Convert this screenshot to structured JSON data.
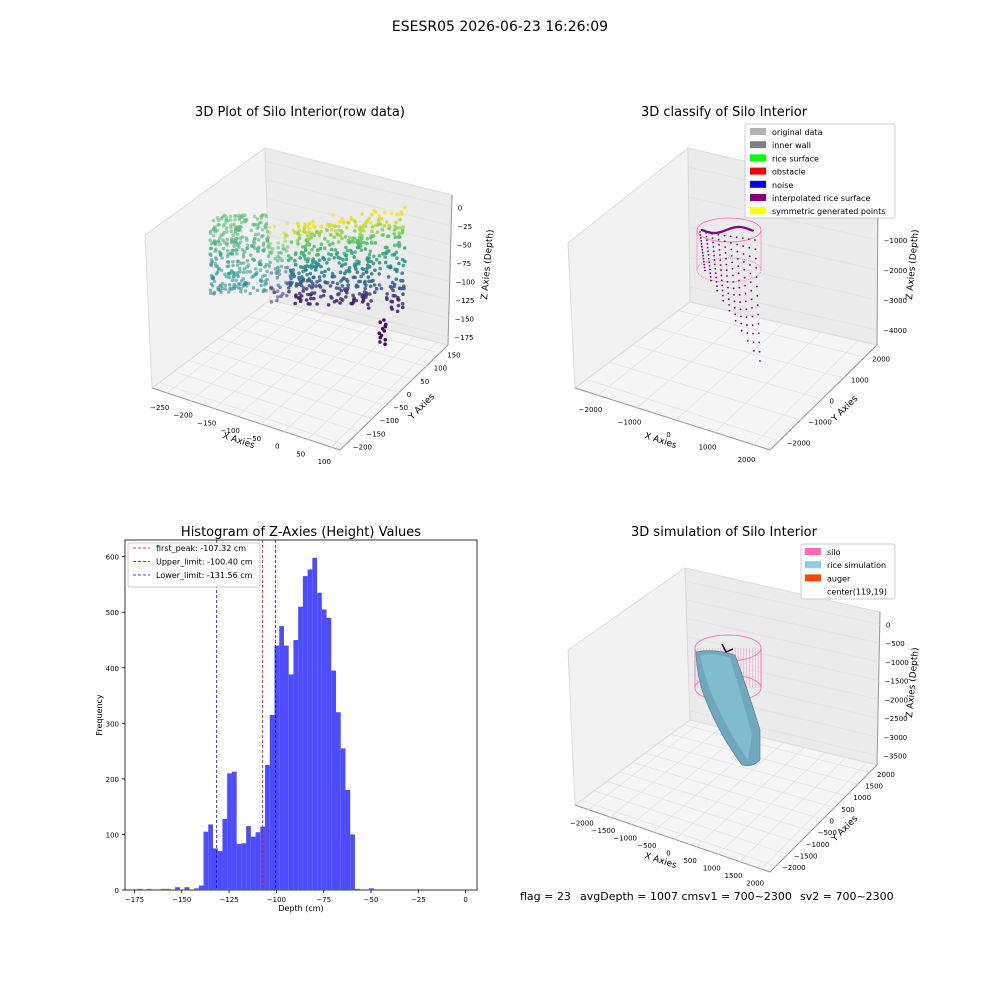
{
  "suptitle": "ESESR05 2026-06-23 16:26:09",
  "footer": {
    "flag": "flag = 23",
    "avg": "avgDepth = 1007 cmsv1 = 700~2300",
    "sv2": "sv2 = 700~2300"
  },
  "colors": {
    "histogram_bar": "#4d4dff",
    "first_peak_line": "#ff0000",
    "limit_lines": "#0000ff",
    "original_data": "#b3b3b3",
    "inner_wall": "#808080",
    "rice_surface": "#00ff00",
    "obstacle": "#ff0000",
    "noise": "#0000ff",
    "interpolated_rice_surface": "#800080",
    "symmetric_generated_points": "#ffff00",
    "silo": "#ff69b4",
    "rice_simulation": "#87ceeb",
    "auger": "#ff4500",
    "center": "#ffffff"
  },
  "chart_data": [
    {
      "type": "scatter",
      "title": "3D Plot of Silo Interior(row data)",
      "xlabel": "X Axies",
      "ylabel": "Y Axies",
      "zlabel": "Z Axies (Depth)",
      "x_ticks": [
        "−250",
        "−200",
        "−150",
        "−100",
        "−50",
        "0",
        "50",
        "100"
      ],
      "y_ticks": [
        "−200",
        "−150",
        "−100",
        "−50",
        "0",
        "50",
        "100",
        "150"
      ],
      "z_ticks": [
        "0",
        "−25",
        "−50",
        "−75",
        "−100",
        "−125",
        "−150",
        "−175"
      ],
      "colormap": "viridis"
    },
    {
      "type": "scatter",
      "title": "3D classify of Silo Interior",
      "xlabel": "X Axies",
      "ylabel": "Y Axies",
      "zlabel": "Z Axies (Depth)",
      "x_ticks": [
        "−2000",
        "−1000",
        "0",
        "1000",
        "2000"
      ],
      "y_ticks": [
        "−2000",
        "−1000",
        "0",
        "1000",
        "2000"
      ],
      "z_ticks": [
        "0",
        "−1000",
        "−2000",
        "−3000",
        "−4000"
      ],
      "legend": [
        "original data",
        "inner wall",
        "rice surface",
        "obstacle",
        "noise",
        "interpolated rice surface",
        "symmetric generated points"
      ],
      "legend_colors": [
        "#b3b3b3",
        "#808080",
        "#00ff00",
        "#ff0000",
        "#0000ff",
        "#800080",
        "#ffff00"
      ],
      "legend_position": "top-right"
    },
    {
      "type": "bar",
      "title": "Histogram of Z-Axies (Height) Values",
      "xlabel": "Depth (cm)",
      "ylabel": "Frequency",
      "xlim": [
        -180,
        6
      ],
      "ylim": [
        0,
        630
      ],
      "x_ticks": [
        -175,
        -150,
        -125,
        -100,
        -75,
        -50,
        -25,
        0
      ],
      "x_tick_labels": [
        "−175",
        "−150",
        "−125",
        "−100",
        "−75",
        "−50",
        "−25",
        "0"
      ],
      "y_ticks": [
        0,
        100,
        200,
        300,
        400,
        500,
        600
      ],
      "bin_start": -173.5,
      "bin_width": 2.5,
      "values": [
        2,
        0,
        2,
        0,
        0,
        2,
        2,
        0,
        5,
        0,
        5,
        0,
        3,
        8,
        105,
        118,
        75,
        70,
        128,
        210,
        213,
        83,
        84,
        115,
        96,
        104,
        114,
        225,
        315,
        440,
        475,
        440,
        388,
        450,
        510,
        565,
        577,
        598,
        535,
        505,
        490,
        395,
        320,
        255,
        180,
        100,
        2,
        0,
        0,
        3
      ],
      "vlines": [
        {
          "label": "first_peak: -107.32 cm",
          "x": -107.32,
          "style": "red-dashed"
        },
        {
          "label": "Upper_limit: -100.40 cm",
          "x": -100.4,
          "style": "blue-dashed"
        },
        {
          "label": "Lower_limit: -131.56 cm",
          "x": -131.56,
          "style": "blue-dashed"
        }
      ],
      "legend_position": "top-left"
    },
    {
      "type": "scatter",
      "title": "3D simulation of Silo Interior",
      "xlabel": "X Axies",
      "ylabel": "Y Axies",
      "zlabel": "Z Axies (Depth)",
      "x_ticks": [
        "−2000",
        "−1500",
        "−1000",
        "−500",
        "0",
        "500",
        "1000",
        "1500",
        "2000"
      ],
      "y_ticks": [
        "−2000",
        "−1500",
        "−1000",
        "−500",
        "0",
        "500",
        "1000",
        "1500",
        "2000"
      ],
      "z_ticks": [
        "0",
        "−500",
        "−1000",
        "−1500",
        "−2000",
        "−2500",
        "−3000",
        "−3500"
      ],
      "legend": [
        "silo",
        "rice simulation",
        "auger",
        "center(119,19)"
      ],
      "legend_colors": [
        "#ff69b4",
        "#87ceeb",
        "#ff4500",
        "#ffffff"
      ],
      "legend_position": "top-right"
    }
  ]
}
